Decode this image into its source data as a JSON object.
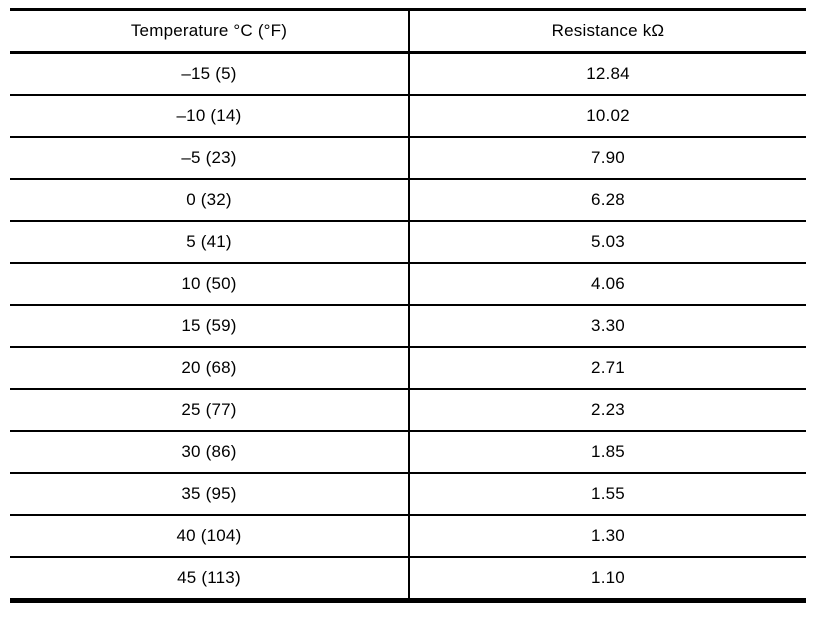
{
  "colors": {
    "background": "#ffffff",
    "text": "#000000",
    "border": "#000000"
  },
  "table": {
    "columns": [
      "Temperature °C (°F)",
      "Resistance kΩ"
    ],
    "rows": [
      [
        "–15 (5)",
        "12.84"
      ],
      [
        "–10 (14)",
        "10.02"
      ],
      [
        "–5 (23)",
        "7.90"
      ],
      [
        "0 (32)",
        "6.28"
      ],
      [
        "5 (41)",
        "5.03"
      ],
      [
        "10 (50)",
        "4.06"
      ],
      [
        "15 (59)",
        "3.30"
      ],
      [
        "20 (68)",
        "2.71"
      ],
      [
        "25 (77)",
        "2.23"
      ],
      [
        "30 (86)",
        "1.85"
      ],
      [
        "35 (95)",
        "1.55"
      ],
      [
        "40 (104)",
        "1.30"
      ],
      [
        "45 (113)",
        "1.10"
      ]
    ]
  },
  "chart_data": {
    "type": "table",
    "title": "",
    "columns": [
      "Temperature °C (°F)",
      "Resistance kΩ"
    ],
    "temperature_c": [
      -15,
      -10,
      -5,
      0,
      5,
      10,
      15,
      20,
      25,
      30,
      35,
      40,
      45
    ],
    "temperature_f": [
      5,
      14,
      23,
      32,
      41,
      50,
      59,
      68,
      77,
      86,
      95,
      104,
      113
    ],
    "resistance_kohm": [
      12.84,
      10.02,
      7.9,
      6.28,
      5.03,
      4.06,
      3.3,
      2.71,
      2.23,
      1.85,
      1.55,
      1.3,
      1.1
    ]
  }
}
